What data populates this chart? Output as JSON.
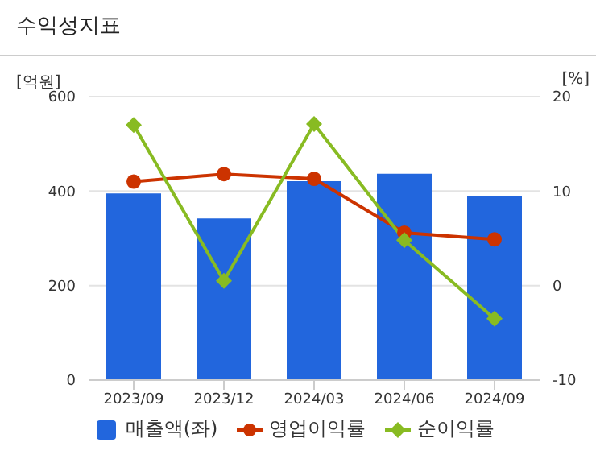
{
  "chart_data": {
    "type": "bar",
    "title": "수익성지표",
    "ylabel": "[억원]",
    "y2label": "[%]",
    "categories": [
      "2023/09",
      "2023/12",
      "2024/03",
      "2024/06",
      "2024/09"
    ],
    "series": [
      {
        "name": "매출액(좌)",
        "color": "#2266dd",
        "values": [
          395,
          342,
          421,
          437,
          390
        ]
      },
      {
        "name": "영업이익률",
        "type": "line",
        "axis": "y2",
        "marker": "circle",
        "color": "#cc3300",
        "values": [
          11.0,
          11.8,
          11.3,
          5.6,
          4.9
        ]
      },
      {
        "name": "순이익률",
        "type": "line",
        "axis": "y2",
        "marker": "diamond",
        "color": "#88bb22",
        "values": [
          17.0,
          0.5,
          17.1,
          4.8,
          -3.5
        ]
      }
    ],
    "ylim": [
      0,
      600
    ],
    "yticks": [
      0,
      200,
      400,
      600
    ],
    "y2lim": [
      -10,
      20
    ],
    "y2ticks": [
      -10,
      0,
      10,
      20
    ],
    "grid": "y",
    "legend": "bottom"
  }
}
